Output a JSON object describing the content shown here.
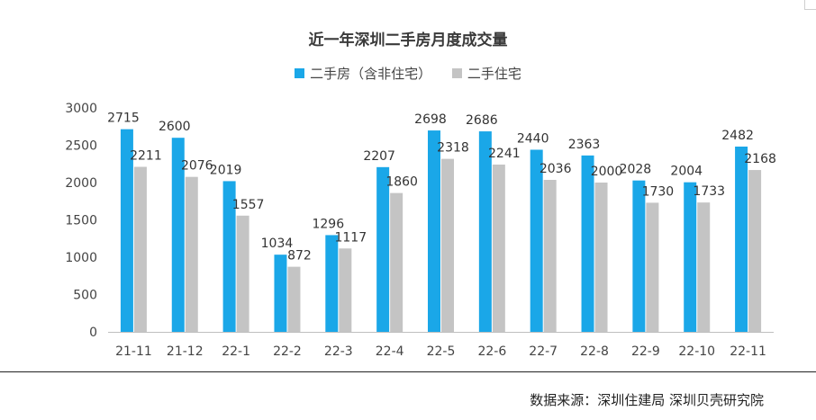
{
  "chart_data": {
    "type": "bar",
    "title": "近一年深圳二手房月度成交量",
    "categories": [
      "21-11",
      "21-12",
      "22-1",
      "22-2",
      "22-3",
      "22-4",
      "22-5",
      "22-6",
      "22-7",
      "22-8",
      "22-9",
      "22-10",
      "22-11"
    ],
    "series": [
      {
        "name": "二手房（含非住宅）",
        "color": "#1aa7e8",
        "values": [
          2715,
          2600,
          2019,
          1034,
          1296,
          2207,
          2698,
          2686,
          2440,
          2363,
          2028,
          2004,
          2482
        ]
      },
      {
        "name": "二手住宅",
        "color": "#c4c4c4",
        "values": [
          2211,
          2076,
          1557,
          872,
          1117,
          1860,
          2318,
          2241,
          2036,
          2000,
          1730,
          1733,
          2168
        ]
      }
    ],
    "ylim": [
      0,
      3000
    ],
    "yticks": [
      0,
      500,
      1000,
      1500,
      2000,
      2500,
      3000
    ],
    "xlabel": "",
    "ylabel": "",
    "grid": false,
    "legend_position": "top"
  },
  "source": "数据来源：深圳住建局 深圳贝壳研究院"
}
